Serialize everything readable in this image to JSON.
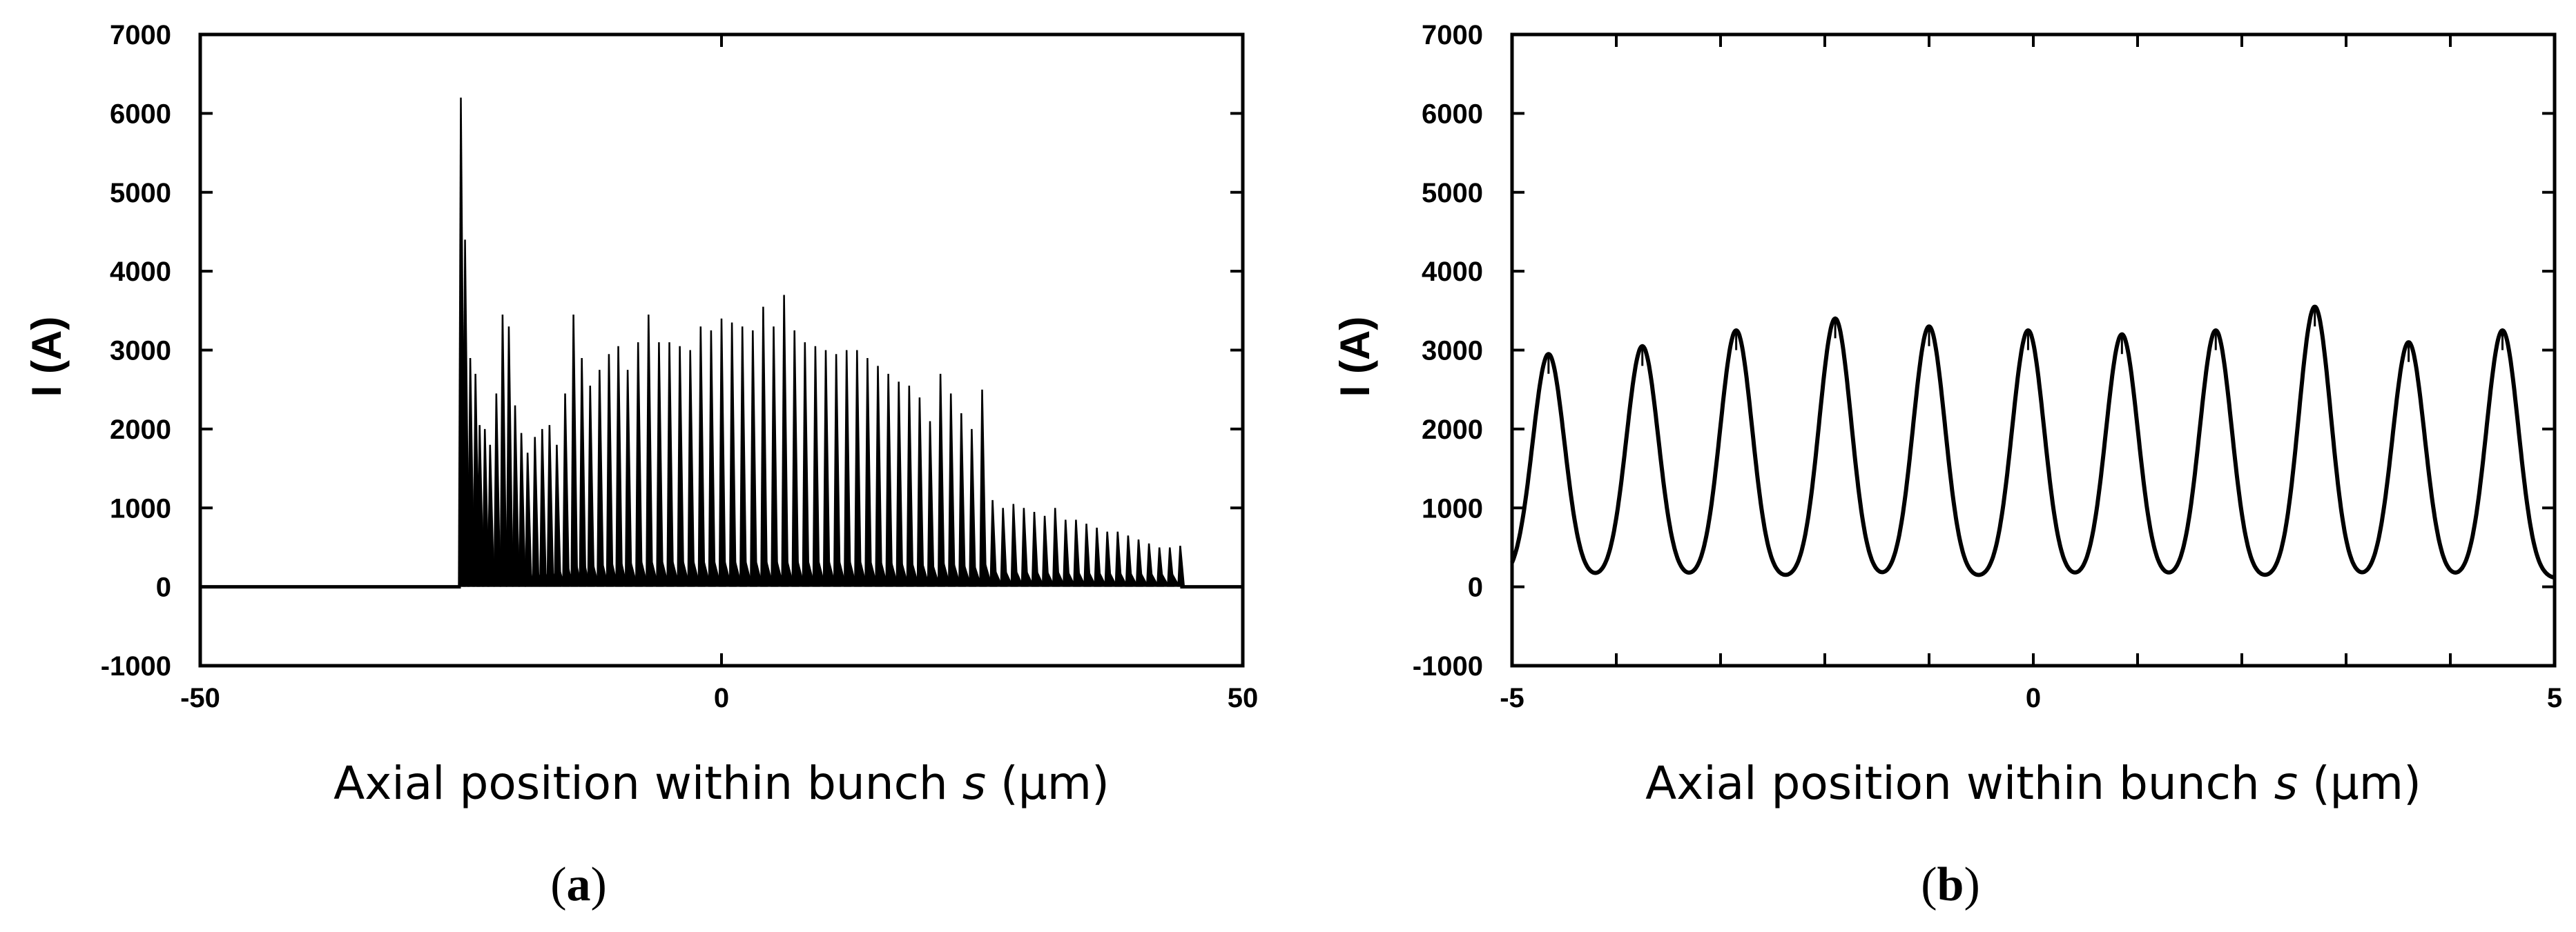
{
  "chart_data": [
    {
      "type": "line",
      "panel_label": "a",
      "xlabel_main": "Axial position within bunch ",
      "xlabel_var": "s",
      "xlabel_unit": " (μm)",
      "ylabel": "I (A)",
      "xlim": [
        -50,
        50
      ],
      "ylim": [
        -1000,
        7000
      ],
      "x_ticks": [
        -50,
        0,
        50
      ],
      "y_ticks": [
        -1000,
        0,
        1000,
        2000,
        3000,
        4000,
        5000,
        6000,
        7000
      ],
      "grid": false,
      "legend": "none",
      "color": "#000000",
      "series": [
        {
          "baseline": 0,
          "spike_start_x": -25,
          "spike_end_x": 44,
          "spike_peaks": [
            {
              "x": -25.0,
              "y": 6200
            },
            {
              "x": -24.6,
              "y": 4400
            },
            {
              "x": -24.1,
              "y": 2900
            },
            {
              "x": -23.6,
              "y": 2700
            },
            {
              "x": -23.2,
              "y": 2050
            },
            {
              "x": -22.7,
              "y": 2000
            },
            {
              "x": -22.2,
              "y": 1800
            },
            {
              "x": -21.6,
              "y": 2450
            },
            {
              "x": -21.0,
              "y": 3450
            },
            {
              "x": -20.4,
              "y": 3300
            },
            {
              "x": -19.8,
              "y": 2300
            },
            {
              "x": -19.2,
              "y": 1950
            },
            {
              "x": -18.6,
              "y": 1700
            },
            {
              "x": -17.9,
              "y": 1900
            },
            {
              "x": -17.2,
              "y": 2000
            },
            {
              "x": -16.5,
              "y": 2050
            },
            {
              "x": -15.8,
              "y": 1800
            },
            {
              "x": -15.0,
              "y": 2450
            },
            {
              "x": -14.2,
              "y": 3450
            },
            {
              "x": -13.4,
              "y": 2900
            },
            {
              "x": -12.6,
              "y": 2550
            },
            {
              "x": -11.7,
              "y": 2750
            },
            {
              "x": -10.8,
              "y": 2950
            },
            {
              "x": -9.9,
              "y": 3050
            },
            {
              "x": -9.0,
              "y": 2750
            },
            {
              "x": -8.0,
              "y": 3100
            },
            {
              "x": -7.0,
              "y": 3450
            },
            {
              "x": -6.0,
              "y": 3100
            },
            {
              "x": -5.0,
              "y": 3100
            },
            {
              "x": -4.0,
              "y": 3050
            },
            {
              "x": -3.0,
              "y": 3000
            },
            {
              "x": -2.0,
              "y": 3300
            },
            {
              "x": -1.0,
              "y": 3250
            },
            {
              "x": 0.0,
              "y": 3400
            },
            {
              "x": 1.0,
              "y": 3350
            },
            {
              "x": 2.0,
              "y": 3300
            },
            {
              "x": 3.0,
              "y": 3250
            },
            {
              "x": 4.0,
              "y": 3550
            },
            {
              "x": 5.0,
              "y": 3300
            },
            {
              "x": 6.0,
              "y": 3700
            },
            {
              "x": 7.0,
              "y": 3250
            },
            {
              "x": 8.0,
              "y": 3100
            },
            {
              "x": 9.0,
              "y": 3050
            },
            {
              "x": 10.0,
              "y": 3000
            },
            {
              "x": 11.0,
              "y": 2950
            },
            {
              "x": 12.0,
              "y": 3000
            },
            {
              "x": 13.0,
              "y": 3000
            },
            {
              "x": 14.0,
              "y": 2900
            },
            {
              "x": 15.0,
              "y": 2800
            },
            {
              "x": 16.0,
              "y": 2700
            },
            {
              "x": 17.0,
              "y": 2600
            },
            {
              "x": 18.0,
              "y": 2550
            },
            {
              "x": 19.0,
              "y": 2400
            },
            {
              "x": 20.0,
              "y": 2100
            },
            {
              "x": 21.0,
              "y": 2700
            },
            {
              "x": 22.0,
              "y": 2450
            },
            {
              "x": 23.0,
              "y": 2200
            },
            {
              "x": 24.0,
              "y": 2000
            },
            {
              "x": 25.0,
              "y": 2500
            },
            {
              "x": 26.0,
              "y": 1100
            },
            {
              "x": 27.0,
              "y": 1000
            },
            {
              "x": 28.0,
              "y": 1050
            },
            {
              "x": 29.0,
              "y": 1000
            },
            {
              "x": 30.0,
              "y": 950
            },
            {
              "x": 31.0,
              "y": 900
            },
            {
              "x": 32.0,
              "y": 1000
            },
            {
              "x": 33.0,
              "y": 850
            },
            {
              "x": 34.0,
              "y": 850
            },
            {
              "x": 35.0,
              "y": 800
            },
            {
              "x": 36.0,
              "y": 750
            },
            {
              "x": 37.0,
              "y": 700
            },
            {
              "x": 38.0,
              "y": 700
            },
            {
              "x": 39.0,
              "y": 650
            },
            {
              "x": 40.0,
              "y": 600
            },
            {
              "x": 41.0,
              "y": 550
            },
            {
              "x": 42.0,
              "y": 500
            },
            {
              "x": 43.0,
              "y": 500
            },
            {
              "x": 44.0,
              "y": 520
            }
          ]
        }
      ]
    },
    {
      "type": "line",
      "panel_label": "b",
      "xlabel_main": "Axial position within bunch ",
      "xlabel_var": "s",
      "xlabel_unit": " (μm)",
      "ylabel": "I (A)",
      "xlim": [
        -5,
        5
      ],
      "ylim": [
        -1000,
        7000
      ],
      "x_ticks": [
        -5,
        0,
        5
      ],
      "x_minor_ticks": [
        -4,
        -3,
        -2,
        -1,
        1,
        2,
        3,
        4
      ],
      "y_ticks": [
        -1000,
        0,
        1000,
        2000,
        3000,
        4000,
        5000,
        6000,
        7000
      ],
      "grid": false,
      "legend": "none",
      "color": "#000000",
      "series": [
        {
          "baseline": 100,
          "peak_width_um": 0.18,
          "peaks": [
            {
              "x": -4.65,
              "y": 2950
            },
            {
              "x": -3.75,
              "y": 3050
            },
            {
              "x": -2.85,
              "y": 3250
            },
            {
              "x": -1.9,
              "y": 3400
            },
            {
              "x": -1.0,
              "y": 3300
            },
            {
              "x": -0.05,
              "y": 3250
            },
            {
              "x": 0.85,
              "y": 3200
            },
            {
              "x": 1.75,
              "y": 3250
            },
            {
              "x": 2.7,
              "y": 3550
            },
            {
              "x": 3.6,
              "y": 3100
            },
            {
              "x": 4.5,
              "y": 3250
            }
          ]
        }
      ]
    }
  ]
}
